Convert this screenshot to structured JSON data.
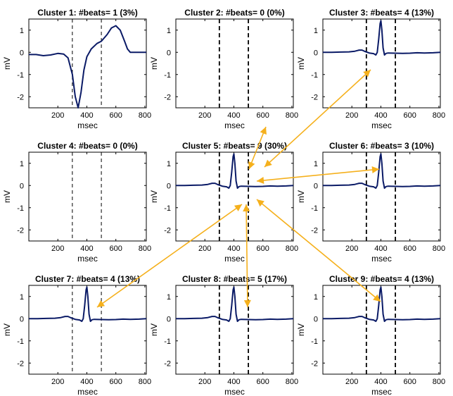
{
  "chart_data": {
    "type": "line",
    "xlabel": "msec",
    "ylabel": "mV",
    "xlim": [
      0,
      810
    ],
    "ylim": [
      -2.5,
      1.5
    ],
    "xticks": [
      200,
      400,
      600,
      800
    ],
    "yticks": [
      1,
      0,
      -1,
      -2
    ],
    "markers": [
      300,
      500
    ],
    "colors": {
      "trace": "#0a1a66",
      "arrow": "#f5b01c",
      "marker": "#000000"
    },
    "panels": [
      {
        "title": "Cluster 1: #beats= 1 (3%)",
        "marker_style": "thin",
        "shape": "cluster1"
      },
      {
        "title": "Cluster 2: #beats= 0 (0%)",
        "marker_style": "bold",
        "shape": "none"
      },
      {
        "title": "Cluster 3: #beats= 4 (13%)",
        "marker_style": "bold",
        "shape": "qrs"
      },
      {
        "title": "Cluster 4: #beats= 0 (0%)",
        "marker_style": "thin",
        "shape": "none"
      },
      {
        "title": "Cluster 5: #beats= 9 (30%)",
        "marker_style": "bold",
        "shape": "qrs"
      },
      {
        "title": "Cluster 6: #beats= 3 (10%)",
        "marker_style": "bold",
        "shape": "qrs"
      },
      {
        "title": "Cluster 7: #beats= 4 (13%)",
        "marker_style": "thin",
        "shape": "qrs"
      },
      {
        "title": "Cluster 8: #beats= 5 (17%)",
        "marker_style": "bold",
        "shape": "qrs"
      },
      {
        "title": "Cluster 9: #beats= 4 (13%)",
        "marker_style": "bold",
        "shape": "qrs"
      }
    ],
    "shapes": {
      "cluster1": [
        [
          0,
          -0.1
        ],
        [
          50,
          -0.1
        ],
        [
          100,
          -0.15
        ],
        [
          150,
          -0.12
        ],
        [
          200,
          -0.05
        ],
        [
          240,
          -0.08
        ],
        [
          270,
          -0.25
        ],
        [
          300,
          -1.0
        ],
        [
          320,
          -2.0
        ],
        [
          340,
          -2.5
        ],
        [
          360,
          -1.8
        ],
        [
          380,
          -0.8
        ],
        [
          400,
          -0.2
        ],
        [
          430,
          0.15
        ],
        [
          470,
          0.4
        ],
        [
          500,
          0.5
        ],
        [
          540,
          0.8
        ],
        [
          570,
          1.1
        ],
        [
          600,
          1.2
        ],
        [
          630,
          1.0
        ],
        [
          660,
          0.5
        ],
        [
          680,
          0.15
        ],
        [
          700,
          0.0
        ],
        [
          740,
          0.0
        ],
        [
          810,
          0.0
        ]
      ],
      "qrs": [
        [
          0,
          0.0
        ],
        [
          60,
          0.0
        ],
        [
          120,
          0.01
        ],
        [
          180,
          0.02
        ],
        [
          220,
          0.05
        ],
        [
          250,
          0.1
        ],
        [
          270,
          0.1
        ],
        [
          290,
          0.04
        ],
        [
          320,
          -0.03
        ],
        [
          350,
          -0.06
        ],
        [
          365,
          -0.12
        ],
        [
          375,
          0.0
        ],
        [
          385,
          0.6
        ],
        [
          395,
          1.3
        ],
        [
          400,
          1.42
        ],
        [
          407,
          1.0
        ],
        [
          415,
          0.2
        ],
        [
          425,
          -0.12
        ],
        [
          435,
          -0.05
        ],
        [
          450,
          -0.03
        ],
        [
          500,
          -0.04
        ],
        [
          550,
          -0.05
        ],
        [
          600,
          -0.04
        ],
        [
          650,
          -0.02
        ],
        [
          700,
          -0.03
        ],
        [
          760,
          -0.02
        ],
        [
          810,
          0.0
        ]
      ]
    },
    "arrows": [
      {
        "from": [
          378,
          180
        ],
        "to": [
          354,
          240
        ],
        "type": "line"
      },
      {
        "from": [
          527,
          99
        ],
        "to": [
          376,
          237
        ],
        "type": "line"
      },
      {
        "from": [
          539,
          240
        ],
        "to": [
          365,
          257
        ],
        "type": "line"
      },
      {
        "from": [
          344,
          290
        ],
        "to": [
          138,
          436
        ],
        "type": "line"
      },
      {
        "from": [
          350,
          290
        ],
        "to": [
          352,
          436
        ],
        "type": "line"
      },
      {
        "from": [
          365,
          283
        ],
        "to": [
          541,
          428
        ],
        "type": "line"
      }
    ]
  }
}
